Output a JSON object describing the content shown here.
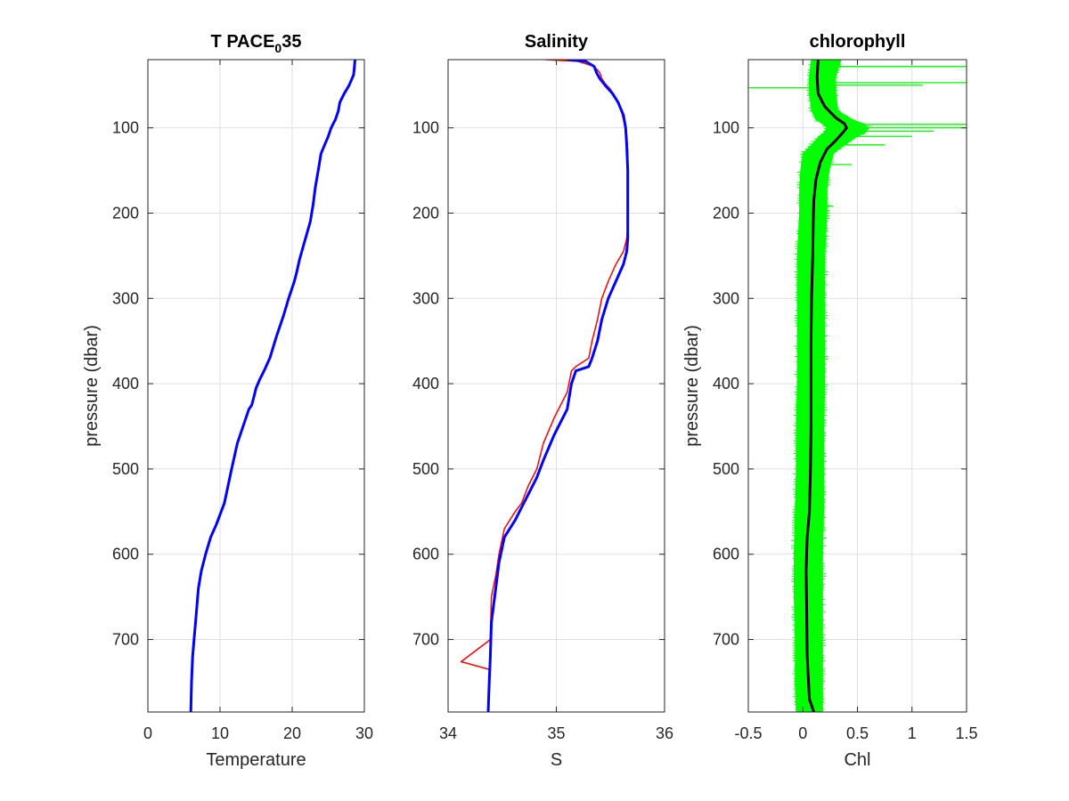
{
  "figure": {
    "background": "#ffffff",
    "axes_color": "#262626",
    "grid_color": "#dfdfdf"
  },
  "chart_data": [
    {
      "type": "line",
      "title": "T PACE",
      "title_subscript": "0",
      "title_suffix": "35",
      "xlabel": "Temperature",
      "ylabel": "pressure (dbar)",
      "xlim": [
        0,
        30
      ],
      "ylim": [
        20,
        785
      ],
      "y_reversed": true,
      "xticks": [
        "0",
        "10",
        "20",
        "30"
      ],
      "yticks": [
        "100",
        "200",
        "300",
        "400",
        "500",
        "600",
        "700"
      ],
      "grid": true,
      "series": [
        {
          "color": "#0000ff",
          "x": [
            28.7,
            28.6,
            28.5,
            27.9,
            27.2,
            26.6,
            26.4,
            26.0,
            25.4,
            25.0,
            24.5,
            24.0,
            23.6,
            23.2,
            22.9,
            22.5,
            22.0,
            21.5,
            21.0,
            20.6,
            20.3,
            19.5,
            18.8,
            17.8,
            16.9,
            16.1,
            15.5,
            15.0,
            14.7,
            14.4,
            14.0,
            13.4,
            12.4,
            11.6,
            10.6,
            9.5,
            8.7,
            8.0,
            7.4,
            7.0,
            6.8,
            6.6,
            6.4,
            6.2,
            6.05,
            5.95
          ],
          "y": [
            20,
            30,
            38,
            50,
            60,
            70,
            80,
            90,
            100,
            110,
            120,
            130,
            150,
            170,
            190,
            210,
            225,
            240,
            255,
            270,
            280,
            300,
            320,
            345,
            370,
            385,
            395,
            405,
            415,
            425,
            430,
            445,
            470,
            500,
            540,
            565,
            580,
            600,
            620,
            640,
            660,
            680,
            700,
            720,
            750,
            785
          ]
        }
      ]
    },
    {
      "type": "line",
      "title": "Salinity",
      "xlabel": "S",
      "ylabel": "",
      "xlim": [
        34,
        36
      ],
      "ylim": [
        20,
        785
      ],
      "y_reversed": true,
      "xticks": [
        "34",
        "35",
        "36"
      ],
      "yticks": [
        "100",
        "200",
        "300",
        "400",
        "500",
        "600",
        "700"
      ],
      "grid": true,
      "series": [
        {
          "color": "#ff0000",
          "x": [
            34.9,
            35.2,
            35.35,
            35.4,
            35.42,
            35.45,
            35.5,
            35.55,
            35.6,
            35.63,
            35.65,
            35.66,
            35.66,
            35.66,
            35.66,
            35.65,
            35.62,
            35.55,
            35.48,
            35.42,
            35.38,
            35.33,
            35.3,
            35.18,
            35.14,
            35.1,
            34.98,
            34.88,
            34.82,
            34.74,
            34.68,
            34.62,
            34.52,
            34.47,
            34.44,
            34.4,
            34.39,
            34.12,
            34.38,
            34.37
          ],
          "y": [
            20,
            22,
            28,
            35,
            42,
            48,
            55,
            65,
            80,
            95,
            110,
            130,
            160,
            190,
            215,
            230,
            245,
            260,
            280,
            300,
            325,
            350,
            370,
            380,
            385,
            410,
            440,
            470,
            500,
            520,
            540,
            550,
            570,
            600,
            625,
            650,
            700,
            726,
            735,
            785
          ]
        },
        {
          "color": "#0000ff",
          "x": [
            35.1,
            35.27,
            35.35,
            35.37,
            35.4,
            35.45,
            35.52,
            35.57,
            35.62,
            35.64,
            35.65,
            35.66,
            35.66,
            35.66,
            35.66,
            35.65,
            35.62,
            35.55,
            35.48,
            35.42,
            35.38,
            35.33,
            35.3,
            35.18,
            35.14,
            35.1,
            34.98,
            34.88,
            34.82,
            34.74,
            34.68,
            34.62,
            34.52,
            34.47,
            34.44,
            34.4,
            34.39,
            34.38,
            34.37
          ],
          "y": [
            20,
            22,
            28,
            35,
            42,
            50,
            60,
            70,
            85,
            100,
            120,
            150,
            180,
            210,
            230,
            245,
            260,
            280,
            300,
            325,
            350,
            370,
            380,
            385,
            400,
            430,
            460,
            490,
            510,
            530,
            545,
            560,
            580,
            610,
            640,
            680,
            720,
            750,
            785
          ]
        }
      ]
    },
    {
      "type": "line",
      "title": "chlorophyll",
      "xlabel": "Chl",
      "ylabel": "pressure (dbar)",
      "xlim": [
        -0.5,
        1.5
      ],
      "ylim": [
        20,
        785
      ],
      "y_reversed": true,
      "xticks": [
        "-0.5",
        "0",
        "0.5",
        "1",
        "1.5"
      ],
      "yticks": [
        "100",
        "200",
        "300",
        "400",
        "500",
        "600",
        "700"
      ],
      "grid": true,
      "band": {
        "color": "#00ff00",
        "y": [
          20,
          40,
          60,
          80,
          90,
          95,
          100,
          105,
          110,
          120,
          130,
          150,
          170,
          200,
          250,
          300,
          350,
          400,
          450,
          500,
          550,
          600,
          650,
          700,
          750,
          785
        ],
        "lower": [
          0.08,
          0.06,
          0.06,
          0.08,
          0.12,
          0.18,
          0.22,
          0.2,
          0.15,
          0.08,
          0.0,
          -0.02,
          -0.03,
          -0.03,
          -0.05,
          -0.05,
          -0.05,
          -0.05,
          -0.06,
          -0.06,
          -0.07,
          -0.08,
          -0.08,
          -0.07,
          -0.07,
          -0.06
        ],
        "upper": [
          0.35,
          0.3,
          0.3,
          0.32,
          0.45,
          0.55,
          0.6,
          0.58,
          0.5,
          0.38,
          0.28,
          0.24,
          0.22,
          0.22,
          0.2,
          0.2,
          0.2,
          0.2,
          0.19,
          0.19,
          0.19,
          0.18,
          0.18,
          0.18,
          0.18,
          0.18
        ],
        "spikes": [
          {
            "y": 28,
            "x": 1.5
          },
          {
            "y": 47,
            "x": 1.5
          },
          {
            "y": 53,
            "x": -0.5
          },
          {
            "y": 50,
            "x": 1.1
          },
          {
            "y": 96,
            "x": 1.5
          },
          {
            "y": 100,
            "x": 1.5
          },
          {
            "y": 104,
            "x": 1.2
          },
          {
            "y": 110,
            "x": 1.0
          },
          {
            "y": 120,
            "x": 0.75
          },
          {
            "y": 143,
            "x": 0.45
          },
          {
            "y": 192,
            "x": 0.28
          }
        ]
      },
      "series": [
        {
          "color": "#000000",
          "x": [
            0.14,
            0.13,
            0.14,
            0.2,
            0.3,
            0.38,
            0.4,
            0.37,
            0.3,
            0.22,
            0.16,
            0.12,
            0.1,
            0.095,
            0.09,
            0.08,
            0.075,
            0.075,
            0.075,
            0.07,
            0.06,
            0.04,
            0.03,
            0.035,
            0.04,
            0.06,
            0.1
          ],
          "y": [
            20,
            40,
            60,
            75,
            88,
            95,
            100,
            105,
            115,
            125,
            140,
            160,
            185,
            210,
            250,
            300,
            350,
            400,
            450,
            500,
            550,
            580,
            620,
            660,
            720,
            770,
            785
          ]
        }
      ]
    }
  ]
}
